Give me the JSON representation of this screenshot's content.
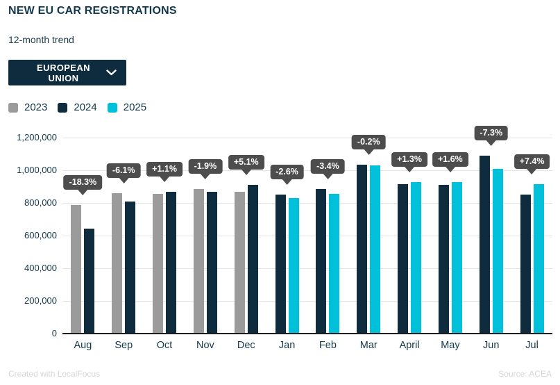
{
  "header": {
    "title": "NEW EU CAR REGISTRATIONS",
    "subtitle": "12-month trend"
  },
  "filter": {
    "label": "EUROPEAN UNION",
    "icon": "chevron-down-icon"
  },
  "legend": [
    {
      "label": "2023",
      "color": "#9b9b9b"
    },
    {
      "label": "2024",
      "color": "#0e2c3e"
    },
    {
      "label": "2025",
      "color": "#00c0da"
    }
  ],
  "chart_data": {
    "type": "bar",
    "title": "NEW EU CAR REGISTRATIONS",
    "subtitle": "12-month trend",
    "categories": [
      "Aug",
      "Sep",
      "Oct",
      "Nov",
      "Dec",
      "Jan",
      "Feb",
      "Mar",
      "April",
      "May",
      "Jun",
      "Jul"
    ],
    "series": [
      {
        "name": "2023",
        "color": "#9b9b9b",
        "values": [
          788000,
          861000,
          856000,
          886000,
          866000,
          null,
          null,
          null,
          null,
          null,
          null,
          null
        ]
      },
      {
        "name": "2024",
        "color": "#0e2c3e",
        "values": [
          644000,
          809000,
          866000,
          869000,
          910000,
          852000,
          884000,
          1032000,
          914000,
          912000,
          1090000,
          852000
        ]
      },
      {
        "name": "2025",
        "color": "#00c0da",
        "values": [
          null,
          null,
          null,
          null,
          null,
          830000,
          854000,
          1030000,
          926000,
          927000,
          1010000,
          915000
        ]
      }
    ],
    "change_labels": [
      "-18.3%",
      "-6.1%",
      "+1.1%",
      "-1.9%",
      "+5.1%",
      "-2.6%",
      "-3.4%",
      "-0.2%",
      "+1.3%",
      "+1.6%",
      "-7.3%",
      "+7.4%"
    ],
    "xlabel": "",
    "ylabel": "",
    "ylim": [
      0,
      1200000
    ],
    "yticks": [
      "1,200,000",
      "1,000,000",
      "800,000",
      "600,000",
      "400,000",
      "200,000",
      "0"
    ],
    "grid": true,
    "legend_position": "top-left",
    "tooltip_bg": "#4d4d4d",
    "gridline_color": "#e4e4e4",
    "axis_color": "#1c1c1c"
  },
  "footer": {
    "left": "Created with LocalFocus",
    "right": "Source: ACEA"
  }
}
